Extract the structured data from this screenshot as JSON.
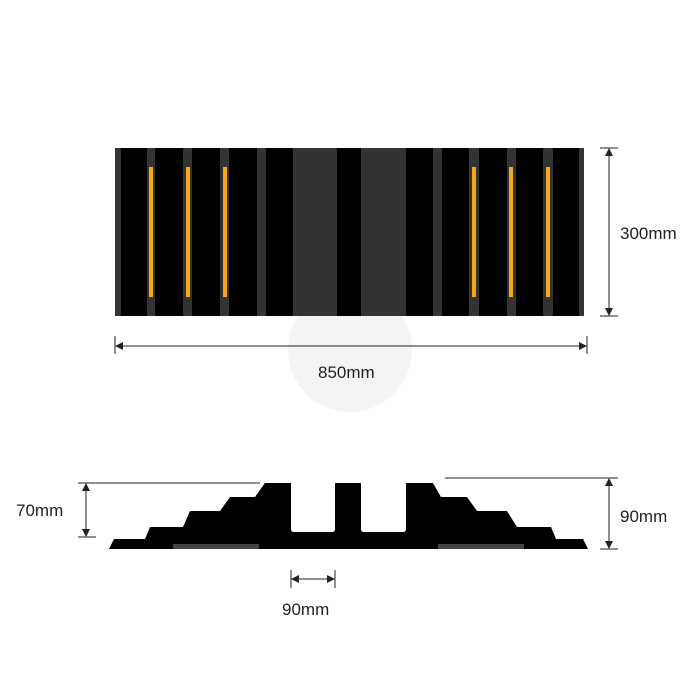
{
  "dimensions": {
    "width": "850mm",
    "depth": "300mm",
    "height_outer": "70mm",
    "height_total": "90mm",
    "channel_width": "90mm"
  },
  "colors": {
    "body": "#000000",
    "rib": "#333333",
    "reflector": "#f5a81c",
    "dimension_line": "#222222"
  }
}
